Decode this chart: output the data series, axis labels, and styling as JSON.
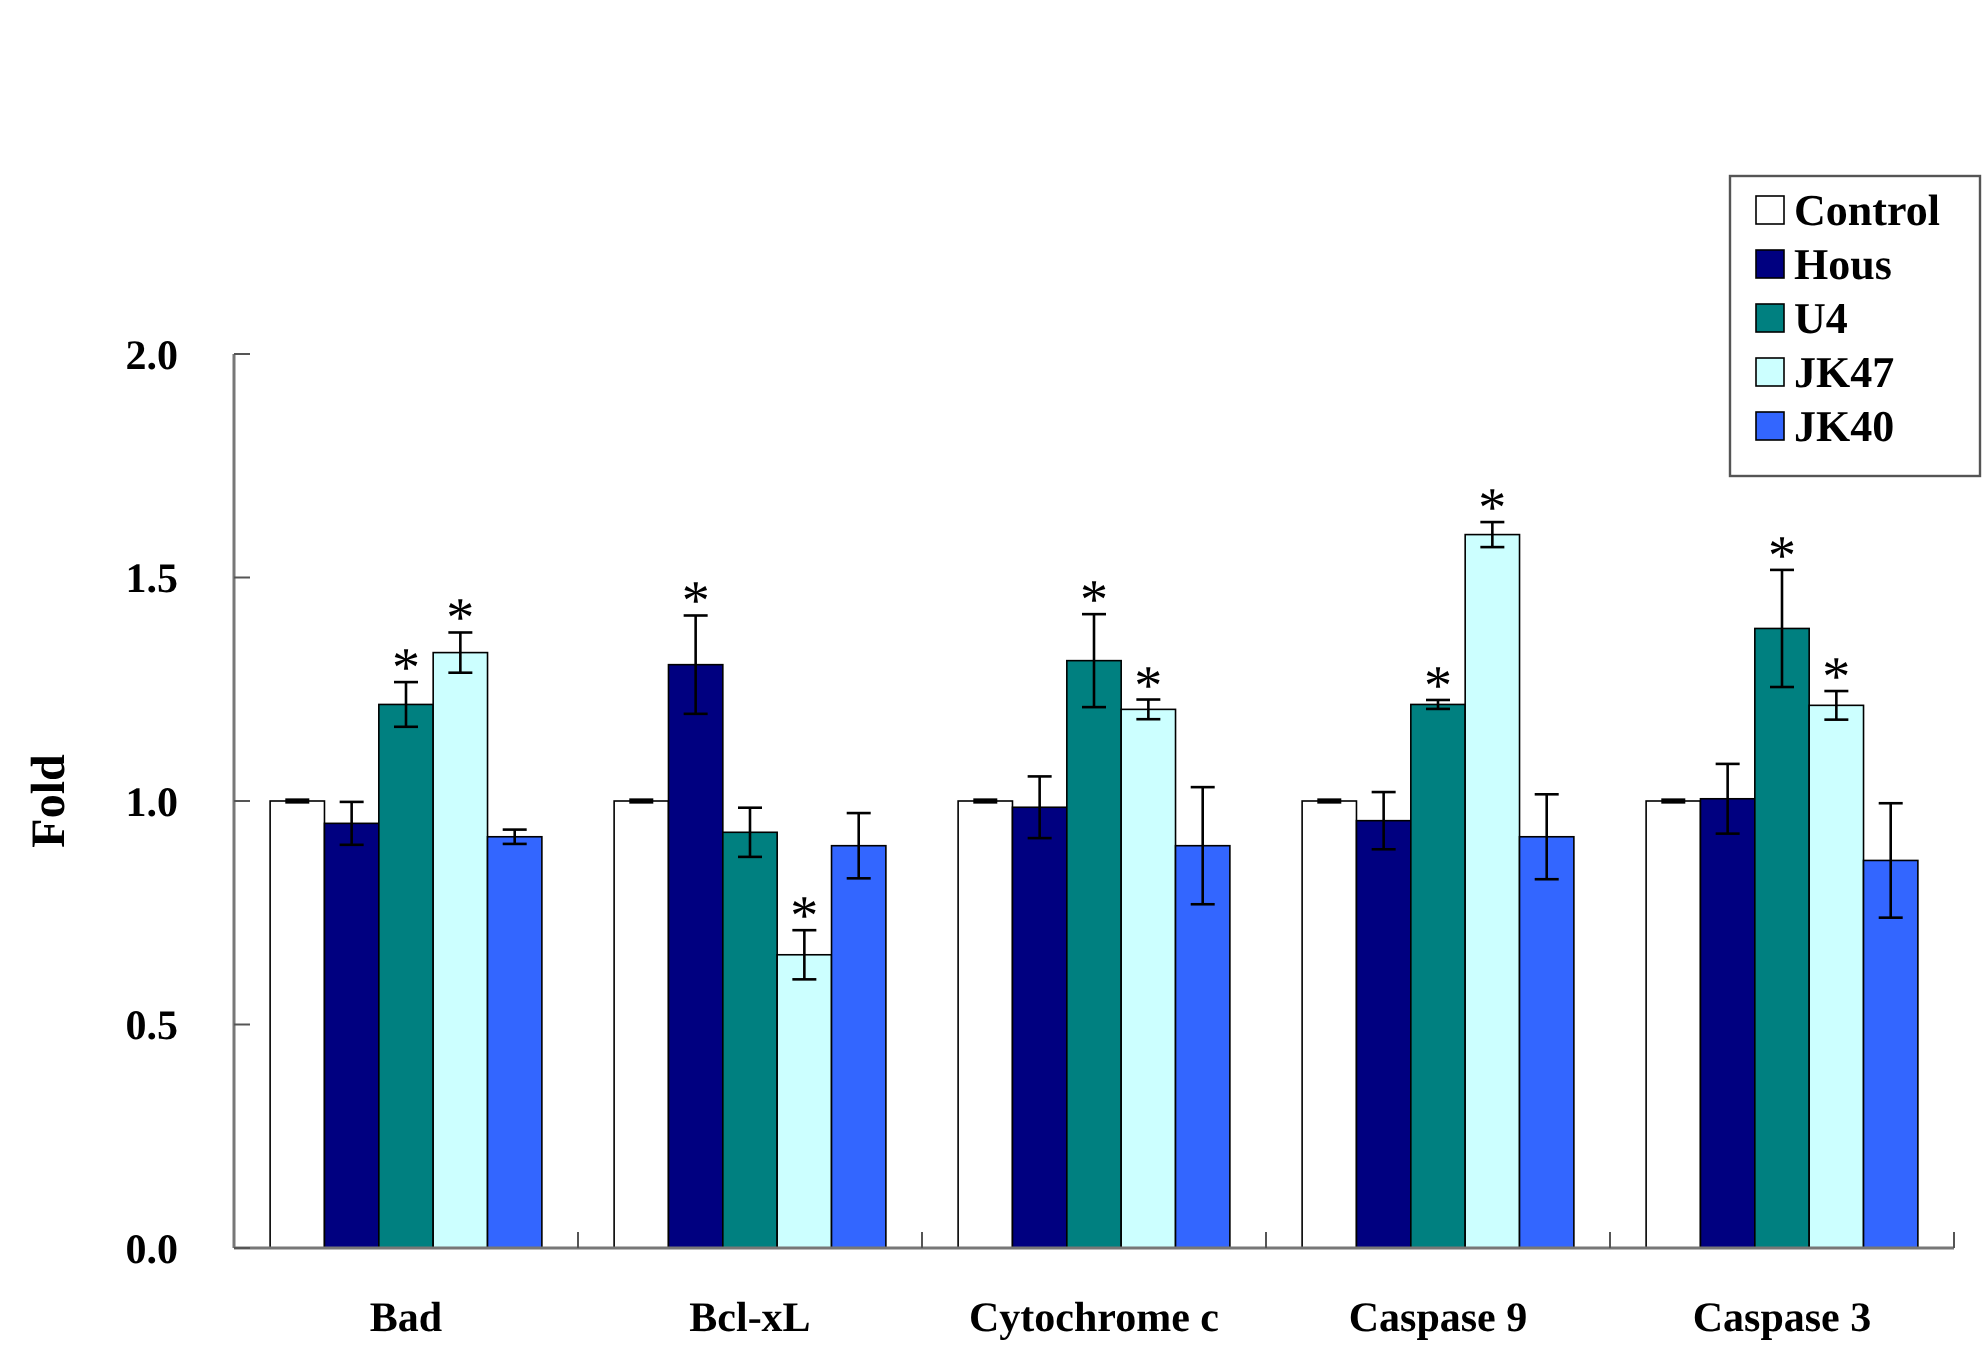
{
  "chart_data": {
    "type": "bar",
    "ylabel": "Fold",
    "categories": [
      "Bad",
      "Bcl-xL",
      "Cytochrome c",
      "Caspase 9",
      "Caspase 3"
    ],
    "series": [
      {
        "name": "Control",
        "color": "#ffffff",
        "values": [
          1.0,
          1.0,
          1.0,
          1.0,
          1.0
        ],
        "errors": [
          0.003,
          0.003,
          0.003,
          0.003,
          0.003
        ]
      },
      {
        "name": "Hous",
        "color": "#000080",
        "values": [
          0.95,
          1.305,
          0.986,
          0.956,
          1.005
        ],
        "errors": [
          0.048,
          0.11,
          0.069,
          0.064,
          0.078
        ],
        "value_labels": [
          null,
          "*",
          null,
          null,
          null
        ]
      },
      {
        "name": "U4",
        "color": "#008080",
        "values": [
          1.216,
          0.93,
          1.314,
          1.216,
          1.386
        ],
        "errors": [
          0.05,
          0.055,
          0.104,
          0.01,
          0.131
        ],
        "value_labels": [
          "*",
          null,
          "*",
          "*",
          "*"
        ]
      },
      {
        "name": "JK47",
        "color": "#ccffff",
        "values": [
          1.332,
          0.656,
          1.205,
          1.596,
          1.214
        ],
        "errors": [
          0.045,
          0.055,
          0.022,
          0.028,
          0.032
        ],
        "value_labels": [
          "*",
          "*",
          "*",
          "*",
          "*"
        ]
      },
      {
        "name": "JK40",
        "color": "#3366ff",
        "values": [
          0.92,
          0.9,
          0.9,
          0.92,
          0.867
        ],
        "errors": [
          0.016,
          0.073,
          0.131,
          0.095,
          0.128
        ]
      }
    ],
    "ylim": [
      0,
      2.0
    ],
    "yticks": [
      {
        "value": 0,
        "label": "0.0"
      },
      {
        "value": 0.5,
        "label": "0.5"
      },
      {
        "value": 1,
        "label": "1.0"
      },
      {
        "value": 1.5,
        "label": "1.5"
      },
      {
        "value": 2,
        "label": "2.0"
      }
    ],
    "grid": false,
    "legend": "top right"
  }
}
